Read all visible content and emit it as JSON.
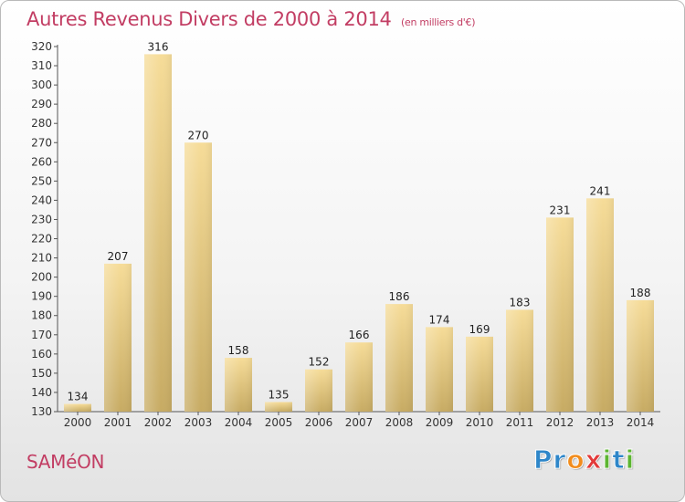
{
  "header": {
    "title": "Autres Revenus Divers de 2000 à 2014",
    "subtitle": "(en milliers d'€)"
  },
  "footer": {
    "city": "SAMéON",
    "logo_letters": [
      {
        "char": "P",
        "color": "#2e86c9"
      },
      {
        "char": "r",
        "color": "#2e86c9"
      },
      {
        "char": "o",
        "color": "#f28c1c"
      },
      {
        "char": "x",
        "color": "#e23a3a"
      },
      {
        "char": "i",
        "color": "#5cb531"
      },
      {
        "char": "t",
        "color": "#2e86c9"
      },
      {
        "char": "i",
        "color": "#5cb531"
      }
    ]
  },
  "colors": {
    "title": "#c23d63",
    "bar_light": "#f6dc98",
    "bar_dark": "#c7ab63"
  },
  "chart_data": {
    "type": "bar",
    "categories": [
      "2000",
      "2001",
      "2002",
      "2003",
      "2004",
      "2005",
      "2006",
      "2007",
      "2008",
      "2009",
      "2010",
      "2011",
      "2012",
      "2013",
      "2014"
    ],
    "values": [
      134,
      207,
      316,
      270,
      158,
      135,
      152,
      166,
      186,
      174,
      169,
      183,
      231,
      241,
      188
    ],
    "title": "Autres Revenus Divers de 2000 à 2014",
    "subtitle": "(en milliers d'€)",
    "xlabel": "",
    "ylabel": "",
    "ylim": [
      130,
      320
    ],
    "yticks": [
      130,
      140,
      150,
      160,
      170,
      180,
      190,
      200,
      210,
      220,
      230,
      240,
      250,
      260,
      270,
      280,
      290,
      300,
      310,
      320
    ],
    "grid": false,
    "legend": "none"
  }
}
